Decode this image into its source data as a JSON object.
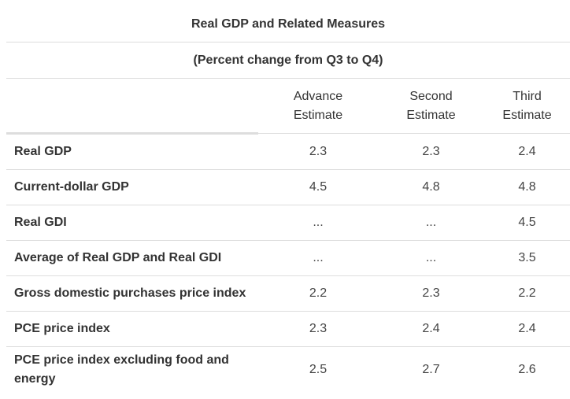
{
  "table": {
    "title": "Real GDP and Related Measures",
    "subtitle": "(Percent change from Q3 to Q4)",
    "columns": [
      {
        "line1": "Advance",
        "line2": "Estimate"
      },
      {
        "line1": "Second",
        "line2": "Estimate"
      },
      {
        "line1": "Third",
        "line2": "Estimate"
      }
    ],
    "rows": [
      {
        "label": "Real GDP",
        "advance": "2.3",
        "second": "2.3",
        "third": "2.4"
      },
      {
        "label": "Current-dollar GDP",
        "advance": "4.5",
        "second": "4.8",
        "third": "4.8"
      },
      {
        "label": "Real GDI",
        "advance": "...",
        "second": "...",
        "third": "4.5"
      },
      {
        "label": "Average of Real GDP and Real GDI",
        "advance": "...",
        "second": "...",
        "third": "3.5"
      },
      {
        "label": "Gross domestic purchases price index",
        "advance": "2.2",
        "second": "2.3",
        "third": "2.2"
      },
      {
        "label": "PCE price index",
        "advance": "2.3",
        "second": "2.4",
        "third": "2.4"
      },
      {
        "label_line1": "PCE price index excluding food and",
        "label_line2": "energy",
        "advance": "2.5",
        "second": "2.7",
        "third": "2.6"
      }
    ]
  }
}
